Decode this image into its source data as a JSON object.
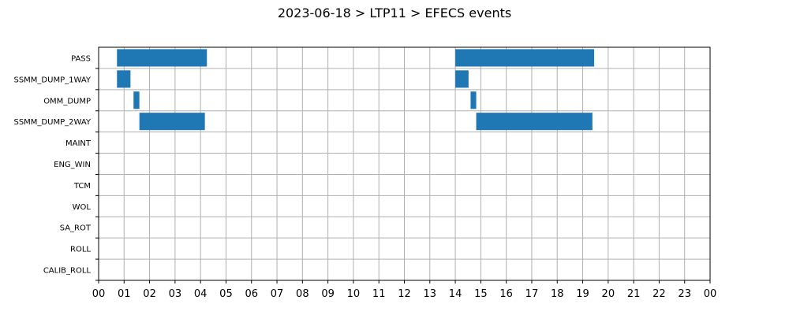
{
  "chart_data": {
    "type": "bar",
    "orientation": "horizontal-timeline",
    "title": "2023-06-18 > LTP11 > EFECS events",
    "xlabel": "",
    "ylabel": "",
    "xlim": [
      0,
      24
    ],
    "x_tick_labels": [
      "00",
      "01",
      "02",
      "03",
      "04",
      "05",
      "06",
      "07",
      "08",
      "09",
      "10",
      "11",
      "12",
      "13",
      "14",
      "15",
      "16",
      "17",
      "18",
      "19",
      "20",
      "21",
      "22",
      "23",
      "00"
    ],
    "categories": [
      "PASS",
      "SSMM_DUMP_1WAY",
      "OMM_DUMP",
      "SSMM_DUMP_2WAY",
      "MAINT",
      "ENG_WIN",
      "TCM",
      "WOL",
      "SA_ROT",
      "ROLL",
      "CALIB_ROLL"
    ],
    "grid": true,
    "bar_color": "#1f77b4",
    "events": [
      {
        "category": "PASS",
        "start": 0.72,
        "end": 4.25
      },
      {
        "category": "PASS",
        "start": 14.0,
        "end": 19.45
      },
      {
        "category": "SSMM_DUMP_1WAY",
        "start": 0.72,
        "end": 1.25
      },
      {
        "category": "SSMM_DUMP_1WAY",
        "start": 14.0,
        "end": 14.52
      },
      {
        "category": "OMM_DUMP",
        "start": 1.37,
        "end": 1.6
      },
      {
        "category": "OMM_DUMP",
        "start": 14.6,
        "end": 14.82
      },
      {
        "category": "SSMM_DUMP_2WAY",
        "start": 1.6,
        "end": 4.17
      },
      {
        "category": "SSMM_DUMP_2WAY",
        "start": 14.82,
        "end": 19.38
      }
    ]
  }
}
